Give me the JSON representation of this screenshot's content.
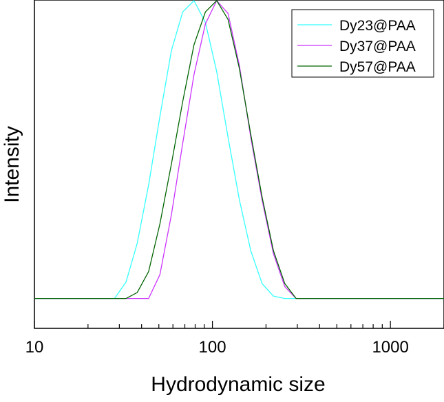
{
  "chart_data": {
    "type": "line",
    "xlabel": "Hydrodynamic size",
    "ylabel": "Intensity",
    "x_scale": "log",
    "xlim": [
      10,
      2000
    ],
    "ylim": [
      -0.1,
      1.0
    ],
    "x_ticks": [
      10,
      100,
      1000
    ],
    "x_tick_labels": [
      "10",
      "100",
      "1000"
    ],
    "y_ticks_visible": false,
    "grid": false,
    "legend_position": "top-right",
    "series": [
      {
        "name": "Dy23@PAA",
        "color": "#33ffff",
        "x": [
          10,
          28.2,
          32.7,
          37.8,
          43.8,
          50.7,
          58.8,
          68.1,
          78.8,
          91.3,
          105.7,
          122.4,
          141.8,
          164.2,
          190.1,
          220.2,
          255,
          295.3,
          2000
        ],
        "y": [
          0,
          0,
          0.055,
          0.185,
          0.38,
          0.61,
          0.83,
          0.96,
          0.998,
          0.925,
          0.76,
          0.54,
          0.33,
          0.16,
          0.05,
          0.008,
          0,
          0,
          0
        ]
      },
      {
        "name": "Dy37@PAA",
        "color": "#cc33ff",
        "x": [
          10,
          43.8,
          50.7,
          58.8,
          68.1,
          78.8,
          91.3,
          105.7,
          122.4,
          141.8,
          164.2,
          190.1,
          220.2,
          255,
          295.3,
          2000
        ],
        "y": [
          0,
          0,
          0.08,
          0.28,
          0.52,
          0.75,
          0.92,
          0.998,
          0.955,
          0.78,
          0.54,
          0.33,
          0.15,
          0.04,
          0,
          0
        ]
      },
      {
        "name": "Dy57@PAA",
        "color": "#006400",
        "x": [
          10,
          32.7,
          37.8,
          43.8,
          50.7,
          58.8,
          68.1,
          78.8,
          91.3,
          105.7,
          122.4,
          141.8,
          164.2,
          190.1,
          220.2,
          255,
          295.3,
          2000
        ],
        "y": [
          0,
          0,
          0.02,
          0.09,
          0.25,
          0.45,
          0.66,
          0.85,
          0.96,
          0.998,
          0.935,
          0.77,
          0.55,
          0.34,
          0.16,
          0.05,
          0,
          0
        ]
      }
    ]
  }
}
